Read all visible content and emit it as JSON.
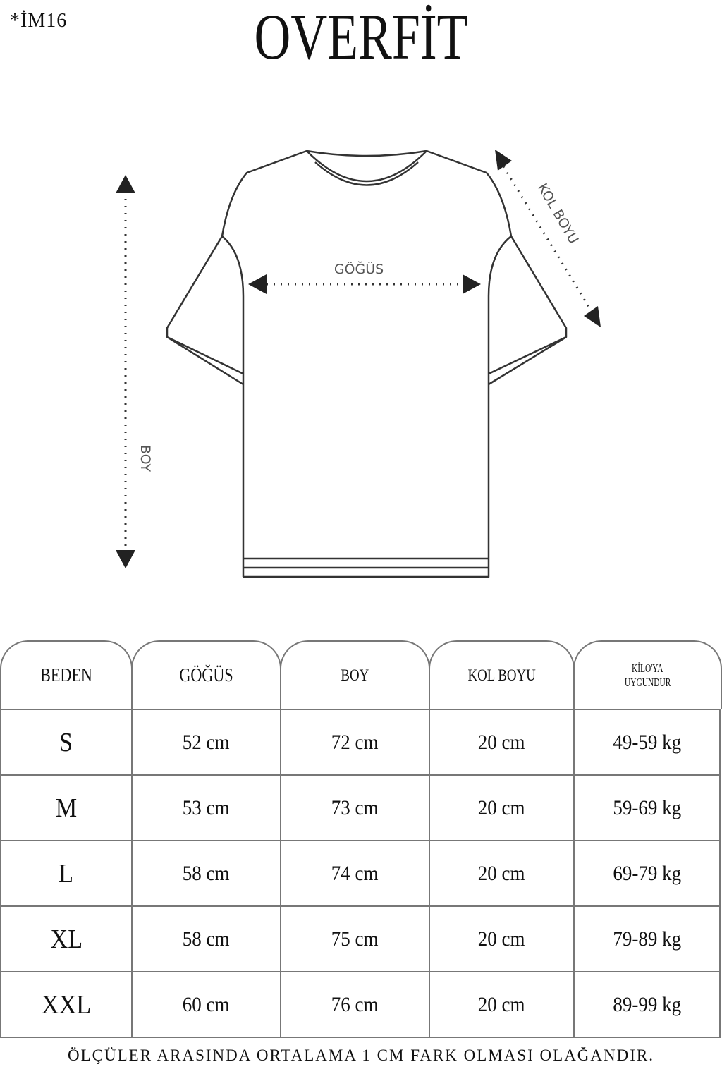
{
  "code": "*İM16",
  "title": "OVERFİT",
  "diagram": {
    "chest_label": "GÖĞÜS",
    "length_label": "BOY",
    "sleeve_label": "KOL BOYU"
  },
  "table": {
    "headers": [
      "BEDEN",
      "GÖĞÜS",
      "BOY",
      "KOL BOYU",
      "KİLO'YA UYGUNDUR"
    ],
    "header_last_lines": [
      "KİLO'YA",
      "UYGUNDUR"
    ],
    "rows": [
      [
        "S",
        "52 cm",
        "72 cm",
        "20  cm",
        "49-59 kg"
      ],
      [
        "M",
        "53 cm",
        "73 cm",
        "20 cm",
        "59-69 kg"
      ],
      [
        "L",
        "58 cm",
        "74 cm",
        "20 cm",
        "69-79 kg"
      ],
      [
        "XL",
        "58 cm",
        "75 cm",
        "20 cm",
        "79-89 kg"
      ],
      [
        "XXL",
        "60 cm",
        "76 cm",
        "20 cm",
        "89-99 kg"
      ]
    ]
  },
  "footer": "ÖLÇÜLER ARASINDA ORTALAMA 1 CM FARK OLMASI OLAĞANDIR."
}
